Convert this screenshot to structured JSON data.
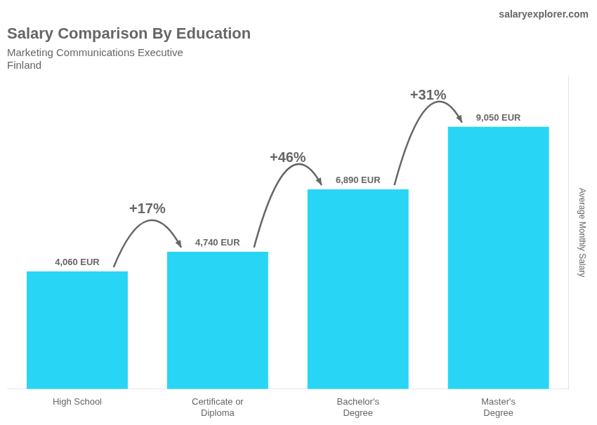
{
  "chart_data": {
    "type": "bar",
    "title": "Salary Comparison By Education",
    "subtitle": "Marketing Communications Executive",
    "country": "Finland",
    "site": "salaryexplorer.com",
    "y_label": "Average Monthly Salary",
    "categories": [
      "High School",
      "Certificate or\nDiploma",
      "Bachelor's\nDegree",
      "Master's\nDegree"
    ],
    "values": [
      4060,
      4740,
      6890,
      9050
    ],
    "value_labels": [
      "4,060 EUR",
      "4,740 EUR",
      "6,890 EUR",
      "9,050 EUR"
    ],
    "data_labels": true,
    "annotations": [
      "+17%",
      "+46%",
      "+31%"
    ],
    "color": "#29d5f5",
    "ylim": [
      0,
      10800
    ],
    "grid": false,
    "tick_labels": "x"
  }
}
